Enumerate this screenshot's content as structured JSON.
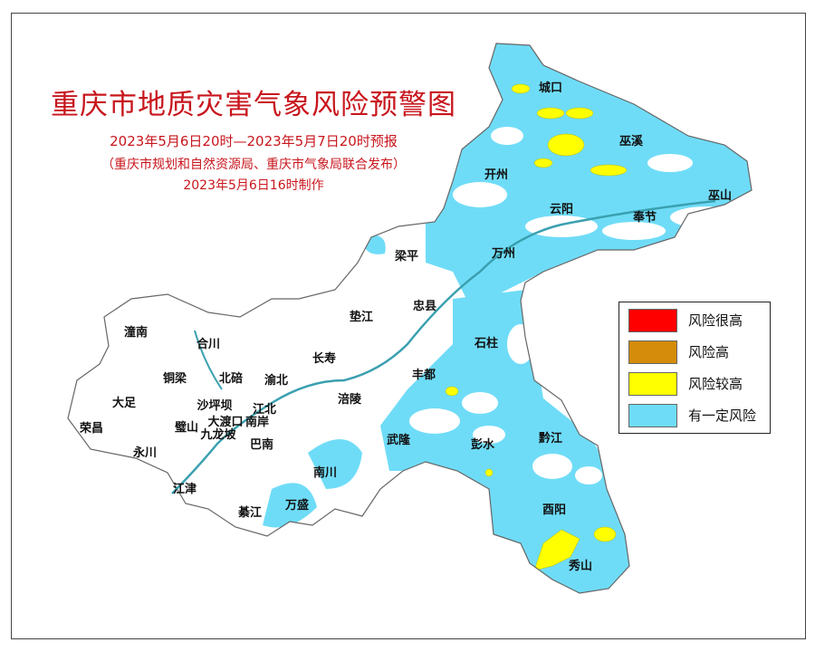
{
  "title": "重庆市地质灾害气象风险预警图",
  "period": "2023年5月6日20时—2023年5月7日20时预报",
  "issuer": "（重庆市规划和自然资源局、重庆市气象局联合发布）",
  "made": "2023年5月6日16时制作",
  "legend": [
    {
      "label": "风险很高",
      "color": "#ff0000"
    },
    {
      "label": "风险高",
      "color": "#d48c0a"
    },
    {
      "label": "风险较高",
      "color": "#ffff00"
    },
    {
      "label": "有一定风险",
      "color": "#6fdcf7"
    }
  ],
  "districts": [
    "城口",
    "巫溪",
    "开州",
    "云阳",
    "奉节",
    "巫山",
    "梁平",
    "万州",
    "忠县",
    "垫江",
    "石柱",
    "丰都",
    "长寿",
    "涪陵",
    "武隆",
    "彭水",
    "黔江",
    "酉阳",
    "秀山",
    "南川",
    "万盛",
    "綦江",
    "江津",
    "巴南",
    "九龙坡",
    "大渡口",
    "南岸",
    "沙坪坝",
    "江北",
    "璧山",
    "北碚",
    "渝北",
    "铜梁",
    "大足",
    "荣昌",
    "永川",
    "合川",
    "潼南"
  ]
}
